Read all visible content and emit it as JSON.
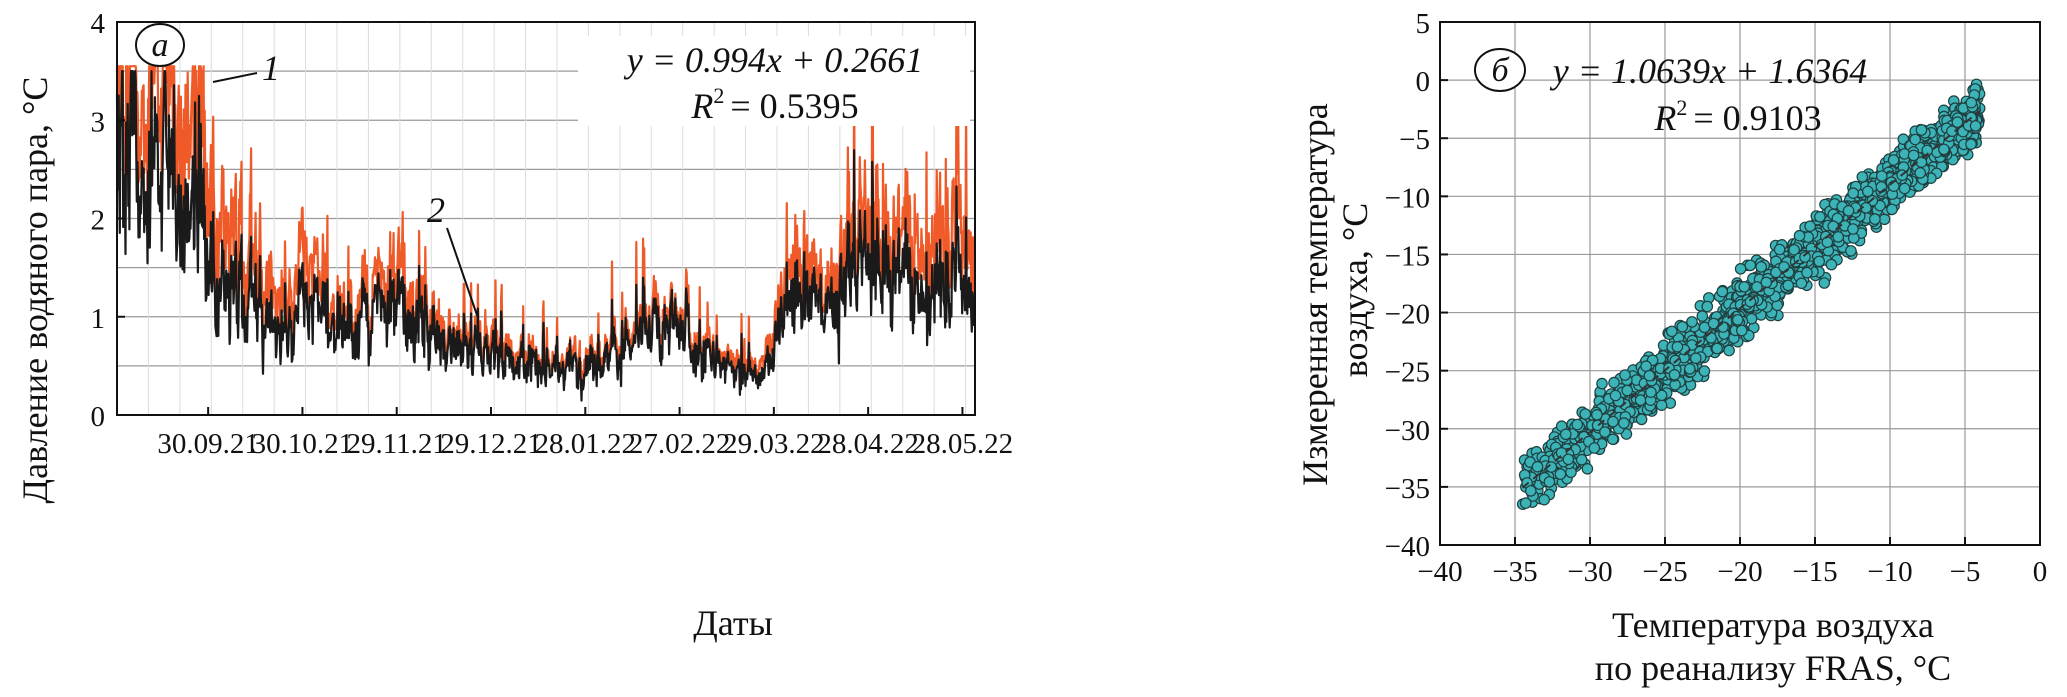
{
  "chart_data": [
    {
      "type": "line",
      "panel_label": "а",
      "ylabel": "Давление водяного пара, °C",
      "xlabel": "Даты",
      "ylim": [
        0,
        4
      ],
      "y_ticks": [
        "0",
        "1",
        "2",
        "3",
        "4"
      ],
      "x_ticks": [
        "30.09.21",
        "30.10.21",
        "29.11.21",
        "29.12.21",
        "28.01.22",
        "27.02.22",
        "29.03.22",
        "28.04.22",
        "28.05.22"
      ],
      "x_range": [
        "2021-09-01",
        "2022-06-01"
      ],
      "grid": true,
      "regression": {
        "equation": "y = 0.994x + 0.2661",
        "r2_label": "R",
        "r2_value": "= 0.5395"
      },
      "series": [
        {
          "label": "1",
          "color": "#f05a28",
          "profile": [
            {
              "x": "2021-09-01",
              "y": 3.3
            },
            {
              "x": "2021-09-10",
              "y": 2.9
            },
            {
              "x": "2021-09-20",
              "y": 3.2
            },
            {
              "x": "2021-10-01",
              "y": 2.2
            },
            {
              "x": "2021-10-10",
              "y": 1.8
            },
            {
              "x": "2021-10-20",
              "y": 1.2
            },
            {
              "x": "2021-11-01",
              "y": 1.5
            },
            {
              "x": "2021-11-10",
              "y": 1.0
            },
            {
              "x": "2021-11-20",
              "y": 1.2
            },
            {
              "x": "2021-12-01",
              "y": 1.5
            },
            {
              "x": "2021-12-10",
              "y": 0.9
            },
            {
              "x": "2021-12-20",
              "y": 0.75
            },
            {
              "x": "2022-01-01",
              "y": 0.7
            },
            {
              "x": "2022-01-15",
              "y": 0.55
            },
            {
              "x": "2022-01-28",
              "y": 0.6
            },
            {
              "x": "2022-02-10",
              "y": 0.8
            },
            {
              "x": "2022-02-25",
              "y": 1.0
            },
            {
              "x": "2022-03-10",
              "y": 0.7
            },
            {
              "x": "2022-03-25",
              "y": 0.45
            },
            {
              "x": "2022-04-05",
              "y": 1.6
            },
            {
              "x": "2022-04-15",
              "y": 1.3
            },
            {
              "x": "2022-04-25",
              "y": 2.0
            },
            {
              "x": "2022-05-05",
              "y": 2.1
            },
            {
              "x": "2022-05-15",
              "y": 1.5
            },
            {
              "x": "2022-05-25",
              "y": 1.8
            },
            {
              "x": "2022-06-01",
              "y": 1.7
            }
          ]
        },
        {
          "label": "2",
          "color": "#1a1a1a",
          "profile": [
            {
              "x": "2021-09-01",
              "y": 2.7
            },
            {
              "x": "2021-09-10",
              "y": 2.2
            },
            {
              "x": "2021-09-20",
              "y": 2.3
            },
            {
              "x": "2021-10-01",
              "y": 1.5
            },
            {
              "x": "2021-10-10",
              "y": 1.3
            },
            {
              "x": "2021-10-20",
              "y": 0.9
            },
            {
              "x": "2021-11-01",
              "y": 1.1
            },
            {
              "x": "2021-11-10",
              "y": 0.85
            },
            {
              "x": "2021-11-20",
              "y": 1.0
            },
            {
              "x": "2021-12-01",
              "y": 1.2
            },
            {
              "x": "2021-12-10",
              "y": 0.8
            },
            {
              "x": "2021-12-20",
              "y": 0.65
            },
            {
              "x": "2022-01-01",
              "y": 0.6
            },
            {
              "x": "2022-01-15",
              "y": 0.5
            },
            {
              "x": "2022-01-28",
              "y": 0.5
            },
            {
              "x": "2022-02-10",
              "y": 0.7
            },
            {
              "x": "2022-02-25",
              "y": 0.9
            },
            {
              "x": "2022-03-10",
              "y": 0.6
            },
            {
              "x": "2022-03-25",
              "y": 0.35
            },
            {
              "x": "2022-04-05",
              "y": 1.3
            },
            {
              "x": "2022-04-15",
              "y": 1.1
            },
            {
              "x": "2022-04-25",
              "y": 1.6
            },
            {
              "x": "2022-05-05",
              "y": 1.7
            },
            {
              "x": "2022-05-15",
              "y": 1.1
            },
            {
              "x": "2022-05-25",
              "y": 1.3
            },
            {
              "x": "2022-06-01",
              "y": 1.2
            }
          ]
        }
      ]
    },
    {
      "type": "scatter",
      "panel_label": "б",
      "xlabel_line1": "Температура воздуха",
      "xlabel_line2": "по реанализу FRAS, °C",
      "ylabel_line1": "Измеренная температура",
      "ylabel_line2": "воздуха, °C",
      "xlim": [
        -40,
        0
      ],
      "ylim": [
        -40,
        5
      ],
      "x_ticks": [
        "−40",
        "−35",
        "−30",
        "−25",
        "−20",
        "−15",
        "−10",
        "−5",
        "0"
      ],
      "y_ticks": [
        "5",
        "0",
        "−5",
        "−10",
        "−15",
        "−20",
        "−25",
        "−30",
        "−35",
        "−40"
      ],
      "grid": true,
      "marker_color": "#3bb3b7",
      "marker_edge": "#1f3f40",
      "regression": {
        "slope": 1.0639,
        "intercept": 1.6364,
        "equation": "y = 1.0639x + 1.6364",
        "r2_label": "R",
        "r2_value": "= 0.9103"
      },
      "point_cloud": {
        "x_range": [
          -34.5,
          -4
        ],
        "residual_sd": 1.8,
        "n": 1700
      }
    }
  ]
}
